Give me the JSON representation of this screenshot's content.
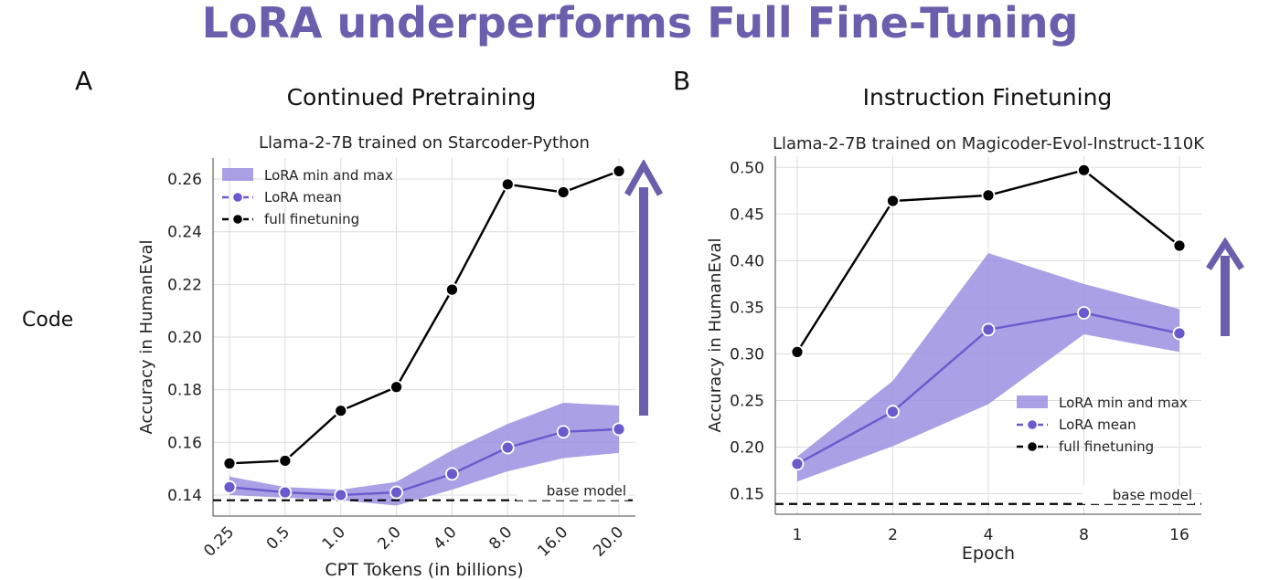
{
  "title": "LoRA underperforms Full Fine-Tuning",
  "row_label": "Code",
  "accent_color": "#6b5fad",
  "colors": {
    "band": "#9b8fe0",
    "lora": "#6a5acd",
    "full": "#000000"
  },
  "panels": [
    {
      "letter": "A",
      "heading": "Continued Pretraining"
    },
    {
      "letter": "B",
      "heading": "Instruction Finetuning"
    }
  ],
  "chart_data": [
    {
      "type": "line",
      "title": "Llama-2-7B trained on Starcoder-Python",
      "xlabel": "CPT Tokens (in billions)",
      "ylabel": "Accuracy in HumanEval",
      "categories": [
        "0.25",
        "0.5",
        "1.0",
        "2.0",
        "4.0",
        "8.0",
        "16.0",
        "20.0"
      ],
      "ylim": [
        0.132,
        0.268
      ],
      "yticks": [
        "0.14",
        "0.16",
        "0.18",
        "0.20",
        "0.22",
        "0.24",
        "0.26"
      ],
      "grid": true,
      "legend_position": "top-left",
      "series": [
        {
          "name": "LoRA min and max",
          "min": [
            0.14,
            0.139,
            0.138,
            0.136,
            0.142,
            0.149,
            0.154,
            0.156
          ],
          "max": [
            0.147,
            0.143,
            0.142,
            0.145,
            0.157,
            0.167,
            0.175,
            0.174
          ]
        },
        {
          "name": "LoRA mean",
          "values": [
            0.143,
            0.141,
            0.14,
            0.141,
            0.148,
            0.158,
            0.164,
            0.165
          ]
        },
        {
          "name": "full finetuning",
          "values": [
            0.152,
            0.153,
            0.172,
            0.181,
            0.218,
            0.258,
            0.255,
            0.263
          ]
        }
      ],
      "baseline": {
        "label": "base model",
        "value": 0.138
      }
    },
    {
      "type": "line",
      "title": "Llama-2-7B trained on Magicoder-Evol-Instruct-110K",
      "xlabel": "Epoch",
      "ylabel": "Accuracy in HumanEval",
      "categories": [
        "1",
        "2",
        "4",
        "8",
        "16"
      ],
      "ylim": [
        0.128,
        0.512
      ],
      "yticks": [
        "0.15",
        "0.20",
        "0.25",
        "0.30",
        "0.35",
        "0.40",
        "0.45",
        "0.50"
      ],
      "grid": true,
      "legend_position": "lower-right",
      "series": [
        {
          "name": "LoRA min and max",
          "min": [
            0.163,
            0.201,
            0.246,
            0.321,
            0.302
          ],
          "max": [
            0.19,
            0.271,
            0.408,
            0.375,
            0.348
          ]
        },
        {
          "name": "LoRA mean",
          "values": [
            0.182,
            0.238,
            0.326,
            0.344,
            0.322
          ]
        },
        {
          "name": "full finetuning",
          "values": [
            0.302,
            0.464,
            0.47,
            0.497,
            0.416
          ]
        }
      ],
      "baseline": {
        "label": "base model",
        "value": 0.139
      }
    }
  ]
}
